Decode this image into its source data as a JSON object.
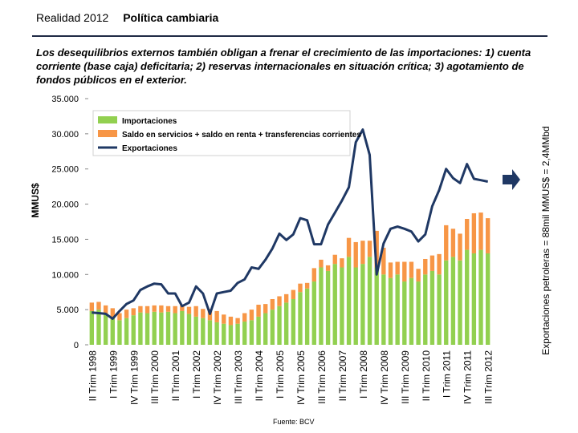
{
  "header": {
    "title": "Realidad 2012",
    "subtitle": "Política cambiaria"
  },
  "slide_subtitle": "Los desequilibrios externos también obligan a frenar el crecimiento de las importaciones: 1) cuenta corriente (base caja) deficitaria; 2) reservas internacionales en situación crítica;  3) agotamiento de fondos públicos en el exterior.",
  "side_note": "Exportaciones petroleras = 88mil MMUS$ = 2,4MMbd",
  "source": "Fuente: BCV",
  "colors": {
    "imports": "#92d050",
    "services": "#f79646",
    "exports": "#1f3864"
  },
  "chart_data": {
    "type": "bar",
    "ylabel": "MMUS$",
    "ylim": [
      0,
      35000
    ],
    "yticks": [
      0,
      5000,
      10000,
      15000,
      20000,
      25000,
      30000,
      35000
    ],
    "ytick_labels": [
      "0",
      "5.000",
      "10.000",
      "15.000",
      "20.000",
      "25.000",
      "30.000",
      "35.000"
    ],
    "xtick_labels": [
      "II Trim 1998",
      "I Trim 1999",
      "IV Trim 1999",
      "III Trim 2000",
      "II Trim 2001",
      "I Trim 2002",
      "IV Trim 2002",
      "III Trim 2003",
      "II Trim 2004",
      "I Trim 2005",
      "IV Trim 2005",
      "III Trim 2006",
      "II Trim 2007",
      "I Trim 2008",
      "IV Trim 2008",
      "III Trim 2009",
      "II Trim 2010",
      "I Trim 2011",
      "IV Trim 2011",
      "III Trim 2012"
    ],
    "legend": [
      "Importaciones",
      "Saldo en servicios + saldo en renta + transferencias corrientes",
      "Exportaciones"
    ],
    "series": [
      {
        "name": "Importaciones",
        "kind": "bar",
        "values": [
          4800,
          5000,
          4300,
          4000,
          3500,
          3800,
          4200,
          4600,
          4500,
          4700,
          4600,
          4700,
          4500,
          4800,
          4400,
          4000,
          3800,
          3500,
          3200,
          3000,
          2800,
          3000,
          3300,
          3500,
          4000,
          4500,
          5000,
          5500,
          6000,
          6500,
          7500,
          8000,
          9000,
          11000,
          10500,
          11500,
          11000,
          12500,
          11000,
          11500,
          12500,
          11000,
          10000,
          9500,
          10000,
          9000,
          9500,
          9000,
          10000,
          10500,
          10000,
          12000,
          12500,
          12000,
          13500,
          13000,
          13500,
          13000
        ]
      },
      {
        "name": "Saldo en servicios + saldo en renta + transferencias corrientes",
        "kind": "bar",
        "values": [
          1200,
          1100,
          1300,
          1200,
          1000,
          1200,
          1000,
          900,
          1000,
          900,
          1000,
          800,
          1000,
          900,
          1000,
          1500,
          1300,
          1600,
          1600,
          1300,
          1200,
          800,
          1200,
          1500,
          1700,
          1300,
          1500,
          1400,
          1200,
          1300,
          1200,
          800,
          1900,
          1100,
          800,
          1300,
          1300,
          2700,
          3600,
          3300,
          2300,
          5200,
          3800,
          2200,
          1800,
          2800,
          2300,
          1800,
          2200,
          2200,
          2900,
          5000,
          4000,
          3800,
          4400,
          5700,
          5300,
          5000
        ]
      },
      {
        "name": "Exportaciones",
        "kind": "line",
        "values": [
          4600,
          4500,
          4400,
          3700,
          4800,
          5800,
          6300,
          7800,
          8300,
          8700,
          8600,
          7300,
          7300,
          5500,
          6000,
          8300,
          7300,
          4400,
          7300,
          7500,
          7700,
          8800,
          9300,
          11000,
          10800,
          12100,
          13700,
          15800,
          14900,
          15700,
          18000,
          17700,
          14300,
          14300,
          17100,
          18800,
          20500,
          22400,
          28800,
          30600,
          27000,
          10000,
          14400,
          16500,
          16800,
          16500,
          16100,
          14700,
          15700,
          19700,
          22000,
          25000,
          23700,
          23000,
          25700,
          23600,
          23400,
          23200
        ]
      }
    ]
  }
}
